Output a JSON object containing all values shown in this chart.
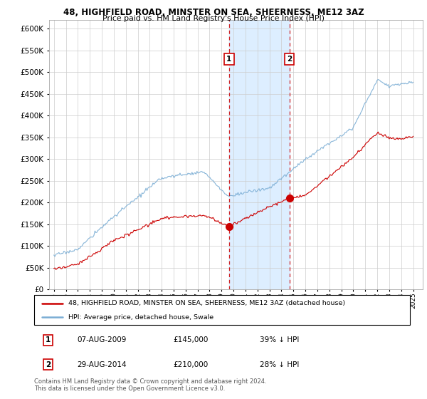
{
  "title_line1": "48, HIGHFIELD ROAD, MINSTER ON SEA, SHEERNESS, ME12 3AZ",
  "title_line2": "Price paid vs. HM Land Registry's House Price Index (HPI)",
  "red_label": "48, HIGHFIELD ROAD, MINSTER ON SEA, SHEERNESS, ME12 3AZ (detached house)",
  "blue_label": "HPI: Average price, detached house, Swale",
  "annotation1_date": "07-AUG-2009",
  "annotation1_price": "£145,000",
  "annotation1_pct": "39% ↓ HPI",
  "annotation2_date": "29-AUG-2014",
  "annotation2_price": "£210,000",
  "annotation2_pct": "28% ↓ HPI",
  "footer": "Contains HM Land Registry data © Crown copyright and database right 2024.\nThis data is licensed under the Open Government Licence v3.0.",
  "red_color": "#cc0000",
  "blue_color": "#7aadd4",
  "highlight_color": "#ddeeff",
  "vline_color": "#cc0000",
  "pt1_year": 2009.622,
  "pt1_price": 145000,
  "pt2_year": 2014.661,
  "pt2_price": 210000,
  "ylim": [
    0,
    620000
  ],
  "yticks": [
    0,
    50000,
    100000,
    150000,
    200000,
    250000,
    300000,
    350000,
    400000,
    450000,
    500000,
    550000,
    600000
  ],
  "xmin": 1994.6,
  "xmax": 2025.8
}
